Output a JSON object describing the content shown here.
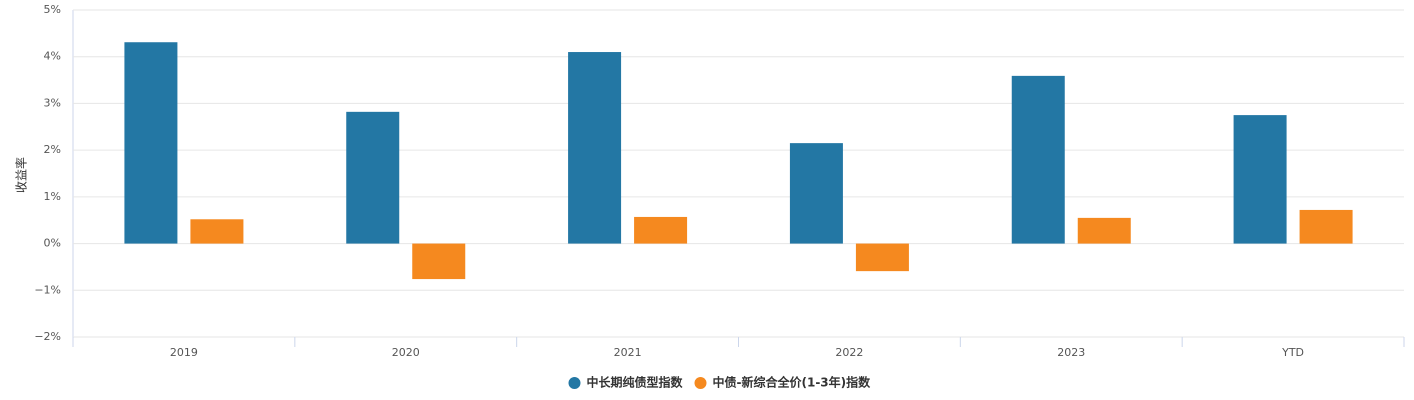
{
  "chart_data": {
    "type": "bar",
    "y_label": "收益率",
    "categories": [
      "2019",
      "2020",
      "2021",
      "2022",
      "2023",
      "YTD"
    ],
    "series": [
      {
        "name": "中长期纯债型指数",
        "color": "#2377a4",
        "values": [
          4.31,
          2.82,
          4.1,
          2.15,
          3.59,
          2.75
        ]
      },
      {
        "name": "中债-新综合全价(1-3年)指数",
        "color": "#f5891f",
        "values": [
          0.52,
          -0.76,
          0.57,
          -0.59,
          0.55,
          0.72
        ]
      }
    ],
    "ylim": [
      -2,
      5
    ],
    "yticks": [
      {
        "value": -2,
        "label": "−2%"
      },
      {
        "value": -1,
        "label": "−1%"
      },
      {
        "value": 0,
        "label": "0%"
      },
      {
        "value": 1,
        "label": "1%"
      },
      {
        "value": 2,
        "label": "2%"
      },
      {
        "value": 3,
        "label": "3%"
      },
      {
        "value": 4,
        "label": "4%"
      },
      {
        "value": 5,
        "label": "5%"
      }
    ],
    "grid": true,
    "legend": "bottom"
  }
}
